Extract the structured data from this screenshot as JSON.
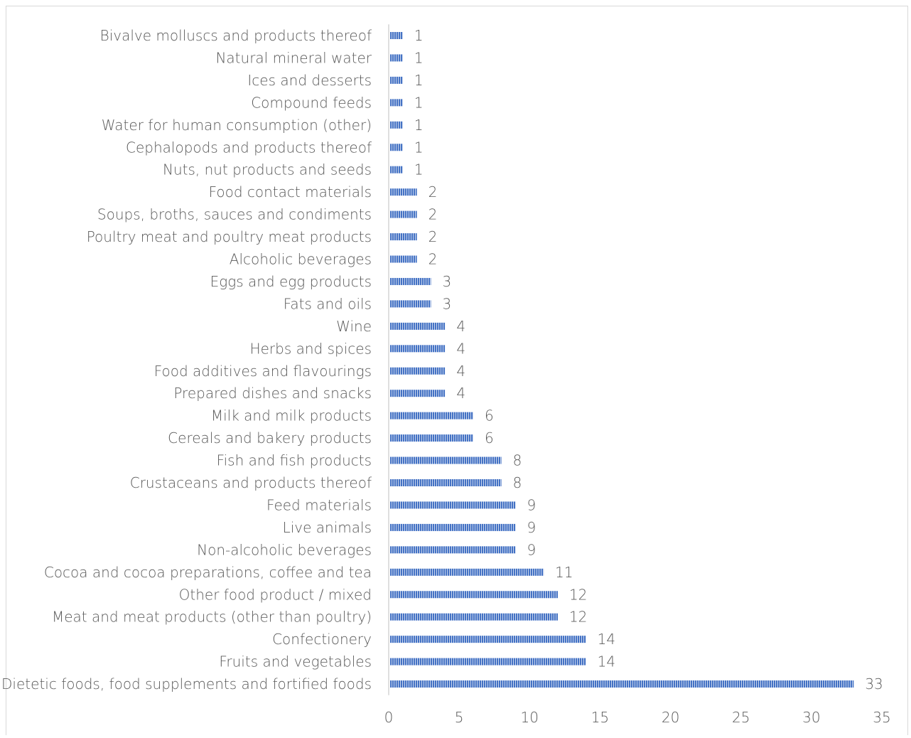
{
  "chart_data": {
    "type": "bar",
    "orientation": "horizontal",
    "title": "",
    "xlabel": "",
    "ylabel": "",
    "xlim": [
      0,
      35
    ],
    "x_ticks": [
      0,
      5,
      10,
      15,
      20,
      25,
      30,
      35
    ],
    "grid": false,
    "data_labels": true,
    "bar_color": "#4472c4",
    "bar_pattern": "vertical-stripes",
    "categories": [
      "Bivalve molluscs and products thereof",
      "Natural mineral water",
      "Ices and desserts",
      "Compound feeds",
      "Water for human consumption (other)",
      "Cephalopods and products thereof",
      "Nuts, nut products and seeds",
      "Food contact materials",
      "Soups, broths, sauces and condiments",
      "Poultry meat and poultry meat products",
      "Alcoholic beverages",
      "Eggs and egg products",
      "Fats and oils",
      "Wine",
      "Herbs and spices",
      "Food additives and flavourings",
      "Prepared dishes and snacks",
      "Milk and milk products",
      "Cereals and bakery products",
      "Fish and fish products",
      "Crustaceans and products thereof",
      "Feed materials",
      "Live animals",
      "Non-alcoholic beverages",
      "Cocoa and cocoa preparations, coffee and tea",
      "Other food product / mixed",
      "Meat and meat products (other than poultry)",
      "Confectionery",
      "Fruits and vegetables",
      "Dietetic foods, food supplements and fortified foods"
    ],
    "values": [
      1,
      1,
      1,
      1,
      1,
      1,
      1,
      2,
      2,
      2,
      2,
      3,
      3,
      4,
      4,
      4,
      4,
      6,
      6,
      8,
      8,
      9,
      9,
      9,
      11,
      12,
      12,
      14,
      14,
      33
    ]
  }
}
